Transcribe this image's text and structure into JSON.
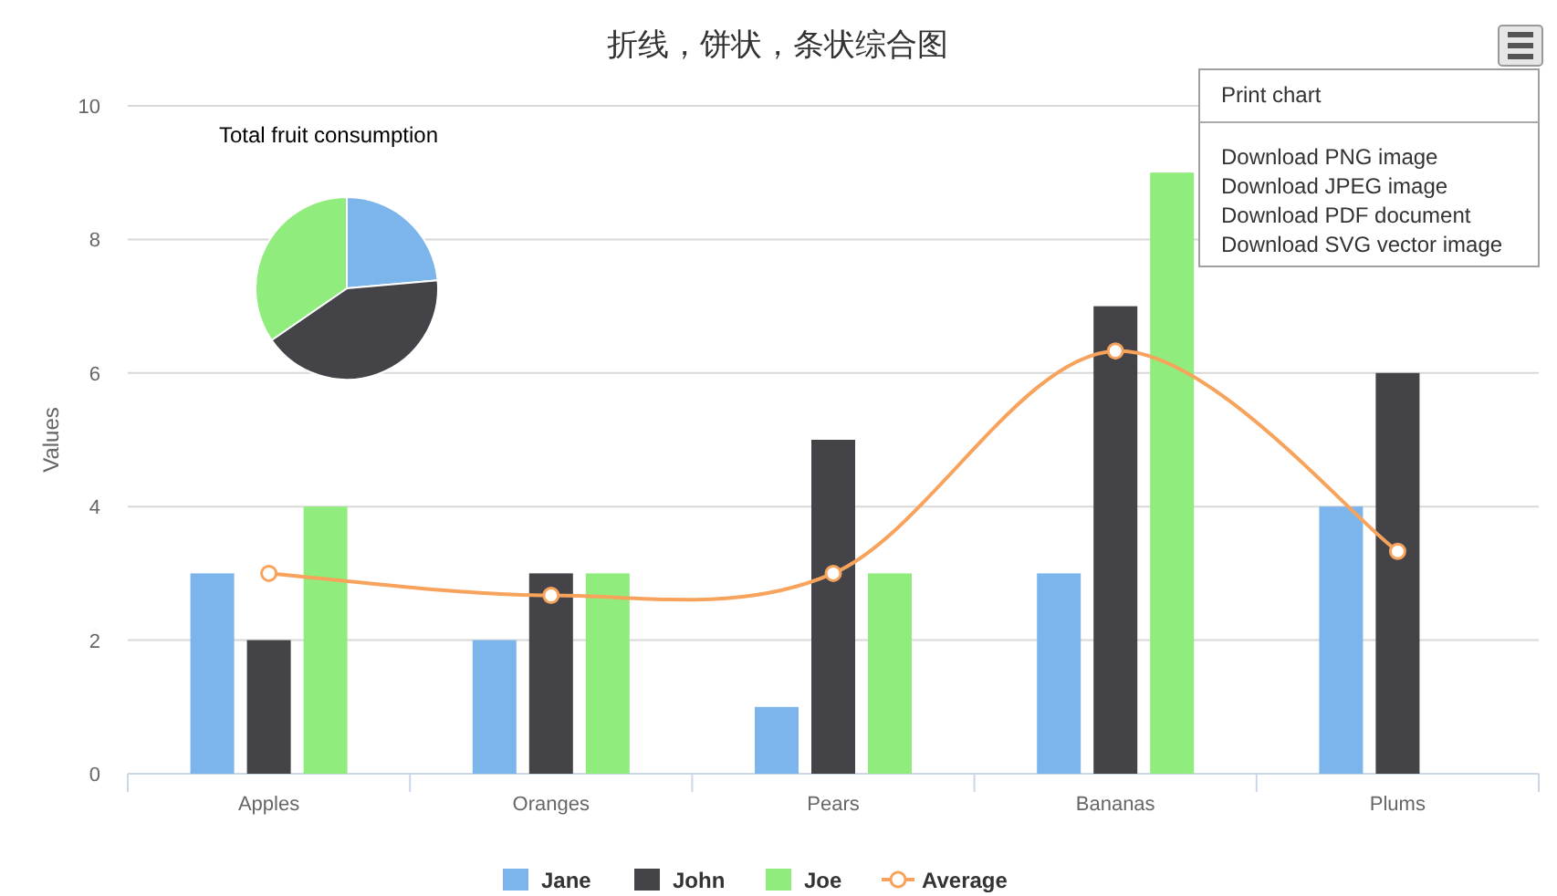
{
  "chart_data": [
    {
      "type": "bar",
      "title": "折线，饼状，条状综合图",
      "ylabel": "Values",
      "categories": [
        "Apples",
        "Oranges",
        "Pears",
        "Bananas",
        "Plums"
      ],
      "series": [
        {
          "name": "Jane",
          "color": "#7cb5ec",
          "values": [
            3,
            2,
            1,
            3,
            4
          ]
        },
        {
          "name": "John",
          "color": "#434348",
          "values": [
            2,
            3,
            5,
            7,
            6
          ]
        },
        {
          "name": "Joe",
          "color": "#90ed7d",
          "values": [
            4,
            3,
            3,
            9,
            0
          ]
        },
        {
          "name": "Average",
          "type": "line",
          "color": "#f7a35c",
          "marker": "circle",
          "values": [
            3,
            2.67,
            3,
            6.33,
            3.33
          ]
        }
      ],
      "ylim": [
        0,
        10
      ],
      "yticks": [
        0,
        2,
        4,
        6,
        8,
        10
      ],
      "grid": "y",
      "legend": "bottom",
      "annotations": [
        "Print chart",
        "Download PNG image",
        "Download JPEG image",
        "Download PDF document",
        "Download SVG vector image"
      ]
    },
    {
      "type": "pie",
      "title": "Total fruit consumption",
      "categories": [
        null,
        null,
        null
      ],
      "values": [
        23.6,
        41.8,
        34.6
      ],
      "colors": [
        "#7cb5ec",
        "#434348",
        "#90ed7d"
      ]
    }
  ]
}
